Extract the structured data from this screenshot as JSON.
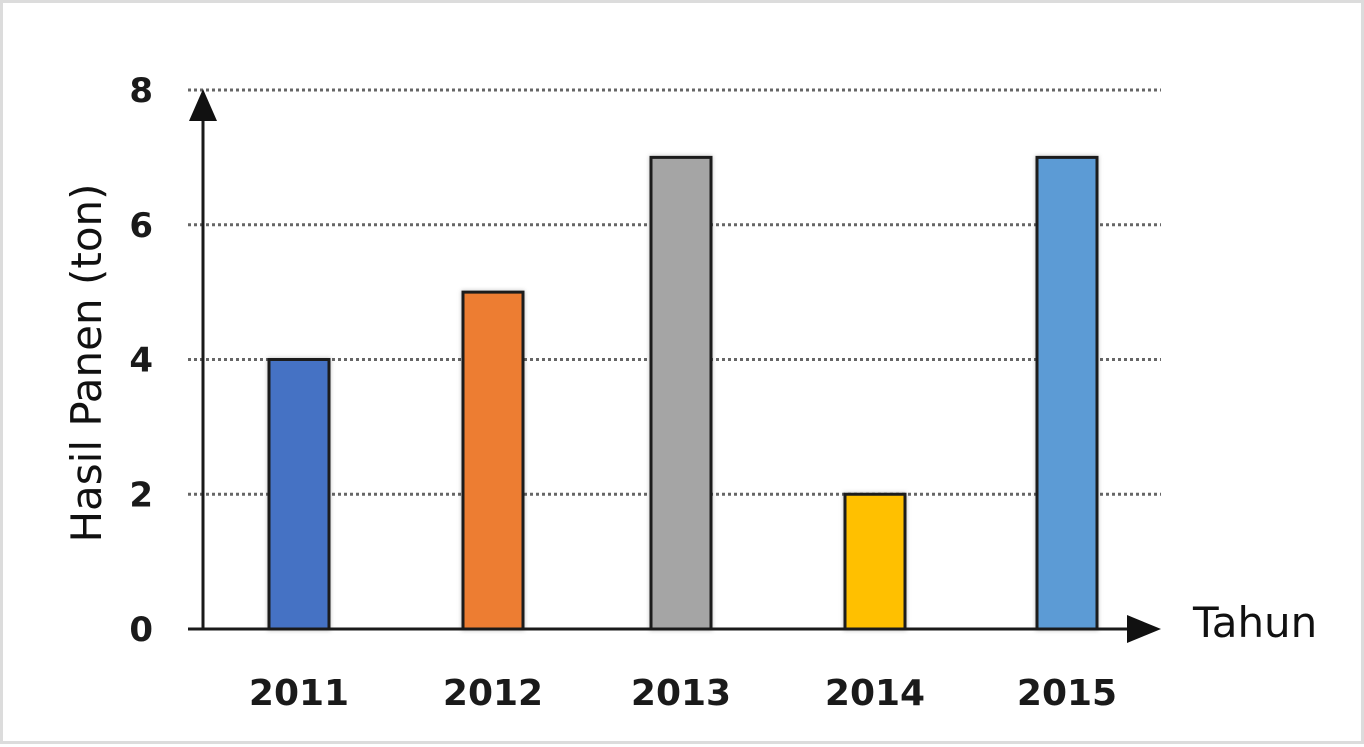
{
  "chart_data": {
    "type": "bar",
    "categories": [
      "2011",
      "2012",
      "2013",
      "2014",
      "2015"
    ],
    "values": [
      4,
      5,
      7,
      2,
      7
    ],
    "colors": [
      "#4472C4",
      "#ED7D31",
      "#A5A5A5",
      "#FFC000",
      "#5B9BD5"
    ],
    "xlabel": "Tahun",
    "ylabel": "Hasil Panen (ton)",
    "ylim": [
      0,
      8
    ],
    "yticks": [
      "0",
      "2",
      "4",
      "6",
      "8"
    ],
    "grid": true,
    "grid_style": "dotted"
  }
}
